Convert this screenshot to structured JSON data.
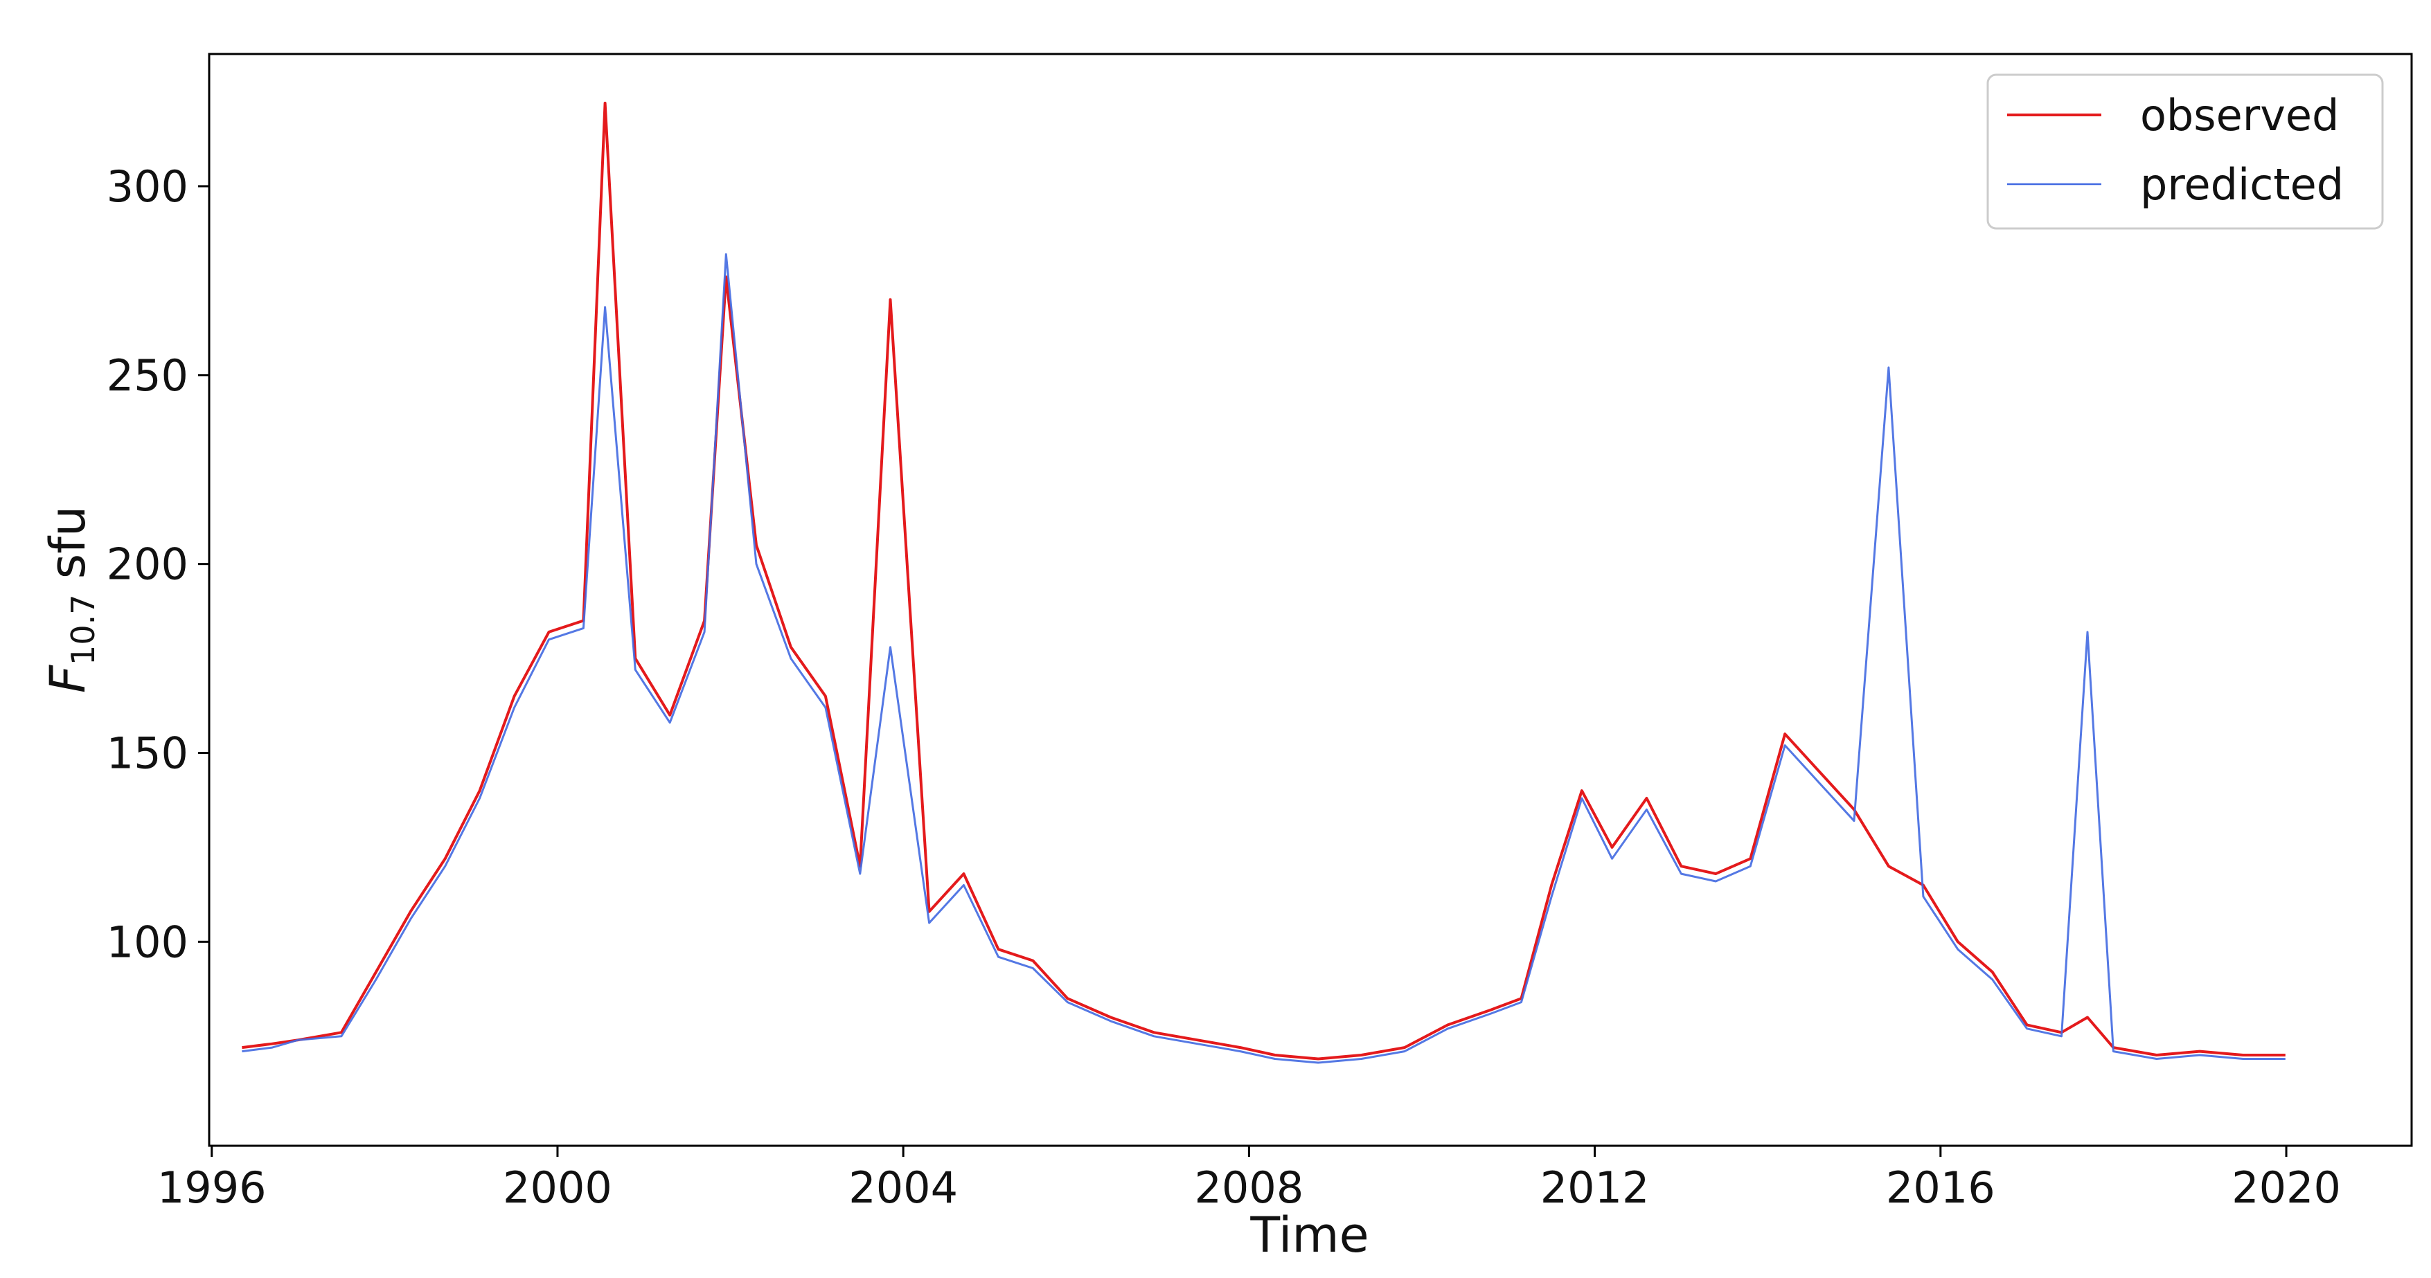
{
  "chart_data": {
    "type": "line",
    "title": "",
    "xlabel": "Time",
    "ylabel": {
      "base": "F",
      "subscript": "10.7",
      "unit": "sfu"
    },
    "xlim": [
      1995.97,
      2021.45
    ],
    "ylim": [
      46,
      335
    ],
    "x_ticks": [
      1996,
      2000,
      2004,
      2008,
      2012,
      2016,
      2020
    ],
    "y_ticks": [
      100,
      150,
      200,
      250,
      300
    ],
    "grid": false,
    "legend": {
      "placement": "top-right"
    },
    "series": [
      {
        "name": "observed",
        "color": "#e41a1c",
        "x": [
          1996.35,
          1996.7,
          1997.0,
          1997.5,
          1997.9,
          1998.3,
          1998.7,
          1999.1,
          1999.5,
          1999.9,
          2000.3,
          2000.55,
          2000.9,
          2001.3,
          2001.7,
          2001.95,
          2002.3,
          2002.7,
          2003.1,
          2003.5,
          2003.85,
          2004.3,
          2004.7,
          2005.1,
          2005.5,
          2005.9,
          2006.4,
          2006.9,
          2007.4,
          2007.9,
          2008.3,
          2008.8,
          2009.3,
          2009.8,
          2010.3,
          2010.8,
          2011.15,
          2011.5,
          2011.85,
          2012.2,
          2012.6,
          2013.0,
          2013.4,
          2013.8,
          2014.2,
          2014.6,
          2015.0,
          2015.4,
          2015.8,
          2016.2,
          2016.6,
          2017.0,
          2017.4,
          2017.7,
          2018.0,
          2018.5,
          2019.0,
          2019.5,
          2019.99
        ],
        "y": [
          72,
          73,
          74,
          76,
          92,
          108,
          122,
          140,
          165,
          182,
          185,
          322,
          175,
          160,
          185,
          276,
          205,
          178,
          165,
          120,
          270,
          108,
          118,
          98,
          95,
          85,
          80,
          76,
          74,
          72,
          70,
          69,
          70,
          72,
          78,
          82,
          85,
          115,
          140,
          125,
          138,
          120,
          118,
          122,
          155,
          145,
          135,
          120,
          115,
          100,
          92,
          78,
          76,
          80,
          72,
          70,
          71,
          70,
          70
        ]
      },
      {
        "name": "predicted",
        "color": "#4169e1",
        "x": [
          1996.35,
          1996.7,
          1997.0,
          1997.5,
          1997.9,
          1998.3,
          1998.7,
          1999.1,
          1999.5,
          1999.9,
          2000.3,
          2000.55,
          2000.9,
          2001.3,
          2001.7,
          2001.95,
          2002.3,
          2002.7,
          2003.1,
          2003.5,
          2003.85,
          2004.3,
          2004.7,
          2005.1,
          2005.5,
          2005.9,
          2006.4,
          2006.9,
          2007.4,
          2007.9,
          2008.3,
          2008.8,
          2009.3,
          2009.8,
          2010.3,
          2010.8,
          2011.15,
          2011.5,
          2011.85,
          2012.2,
          2012.6,
          2013.0,
          2013.4,
          2013.8,
          2014.2,
          2014.6,
          2015.0,
          2015.4,
          2015.8,
          2016.2,
          2016.6,
          2017.0,
          2017.4,
          2017.7,
          2018.0,
          2018.5,
          2019.0,
          2019.5,
          2019.99
        ],
        "y": [
          71,
          72,
          74,
          75,
          90,
          106,
          120,
          138,
          162,
          180,
          183,
          268,
          172,
          158,
          182,
          282,
          200,
          175,
          162,
          118,
          178,
          105,
          115,
          96,
          93,
          84,
          79,
          75,
          73,
          71,
          69,
          68,
          69,
          71,
          77,
          81,
          84,
          112,
          138,
          122,
          135,
          118,
          116,
          120,
          152,
          142,
          132,
          252,
          112,
          98,
          90,
          77,
          75,
          182,
          71,
          69,
          70,
          69,
          69
        ]
      }
    ]
  }
}
